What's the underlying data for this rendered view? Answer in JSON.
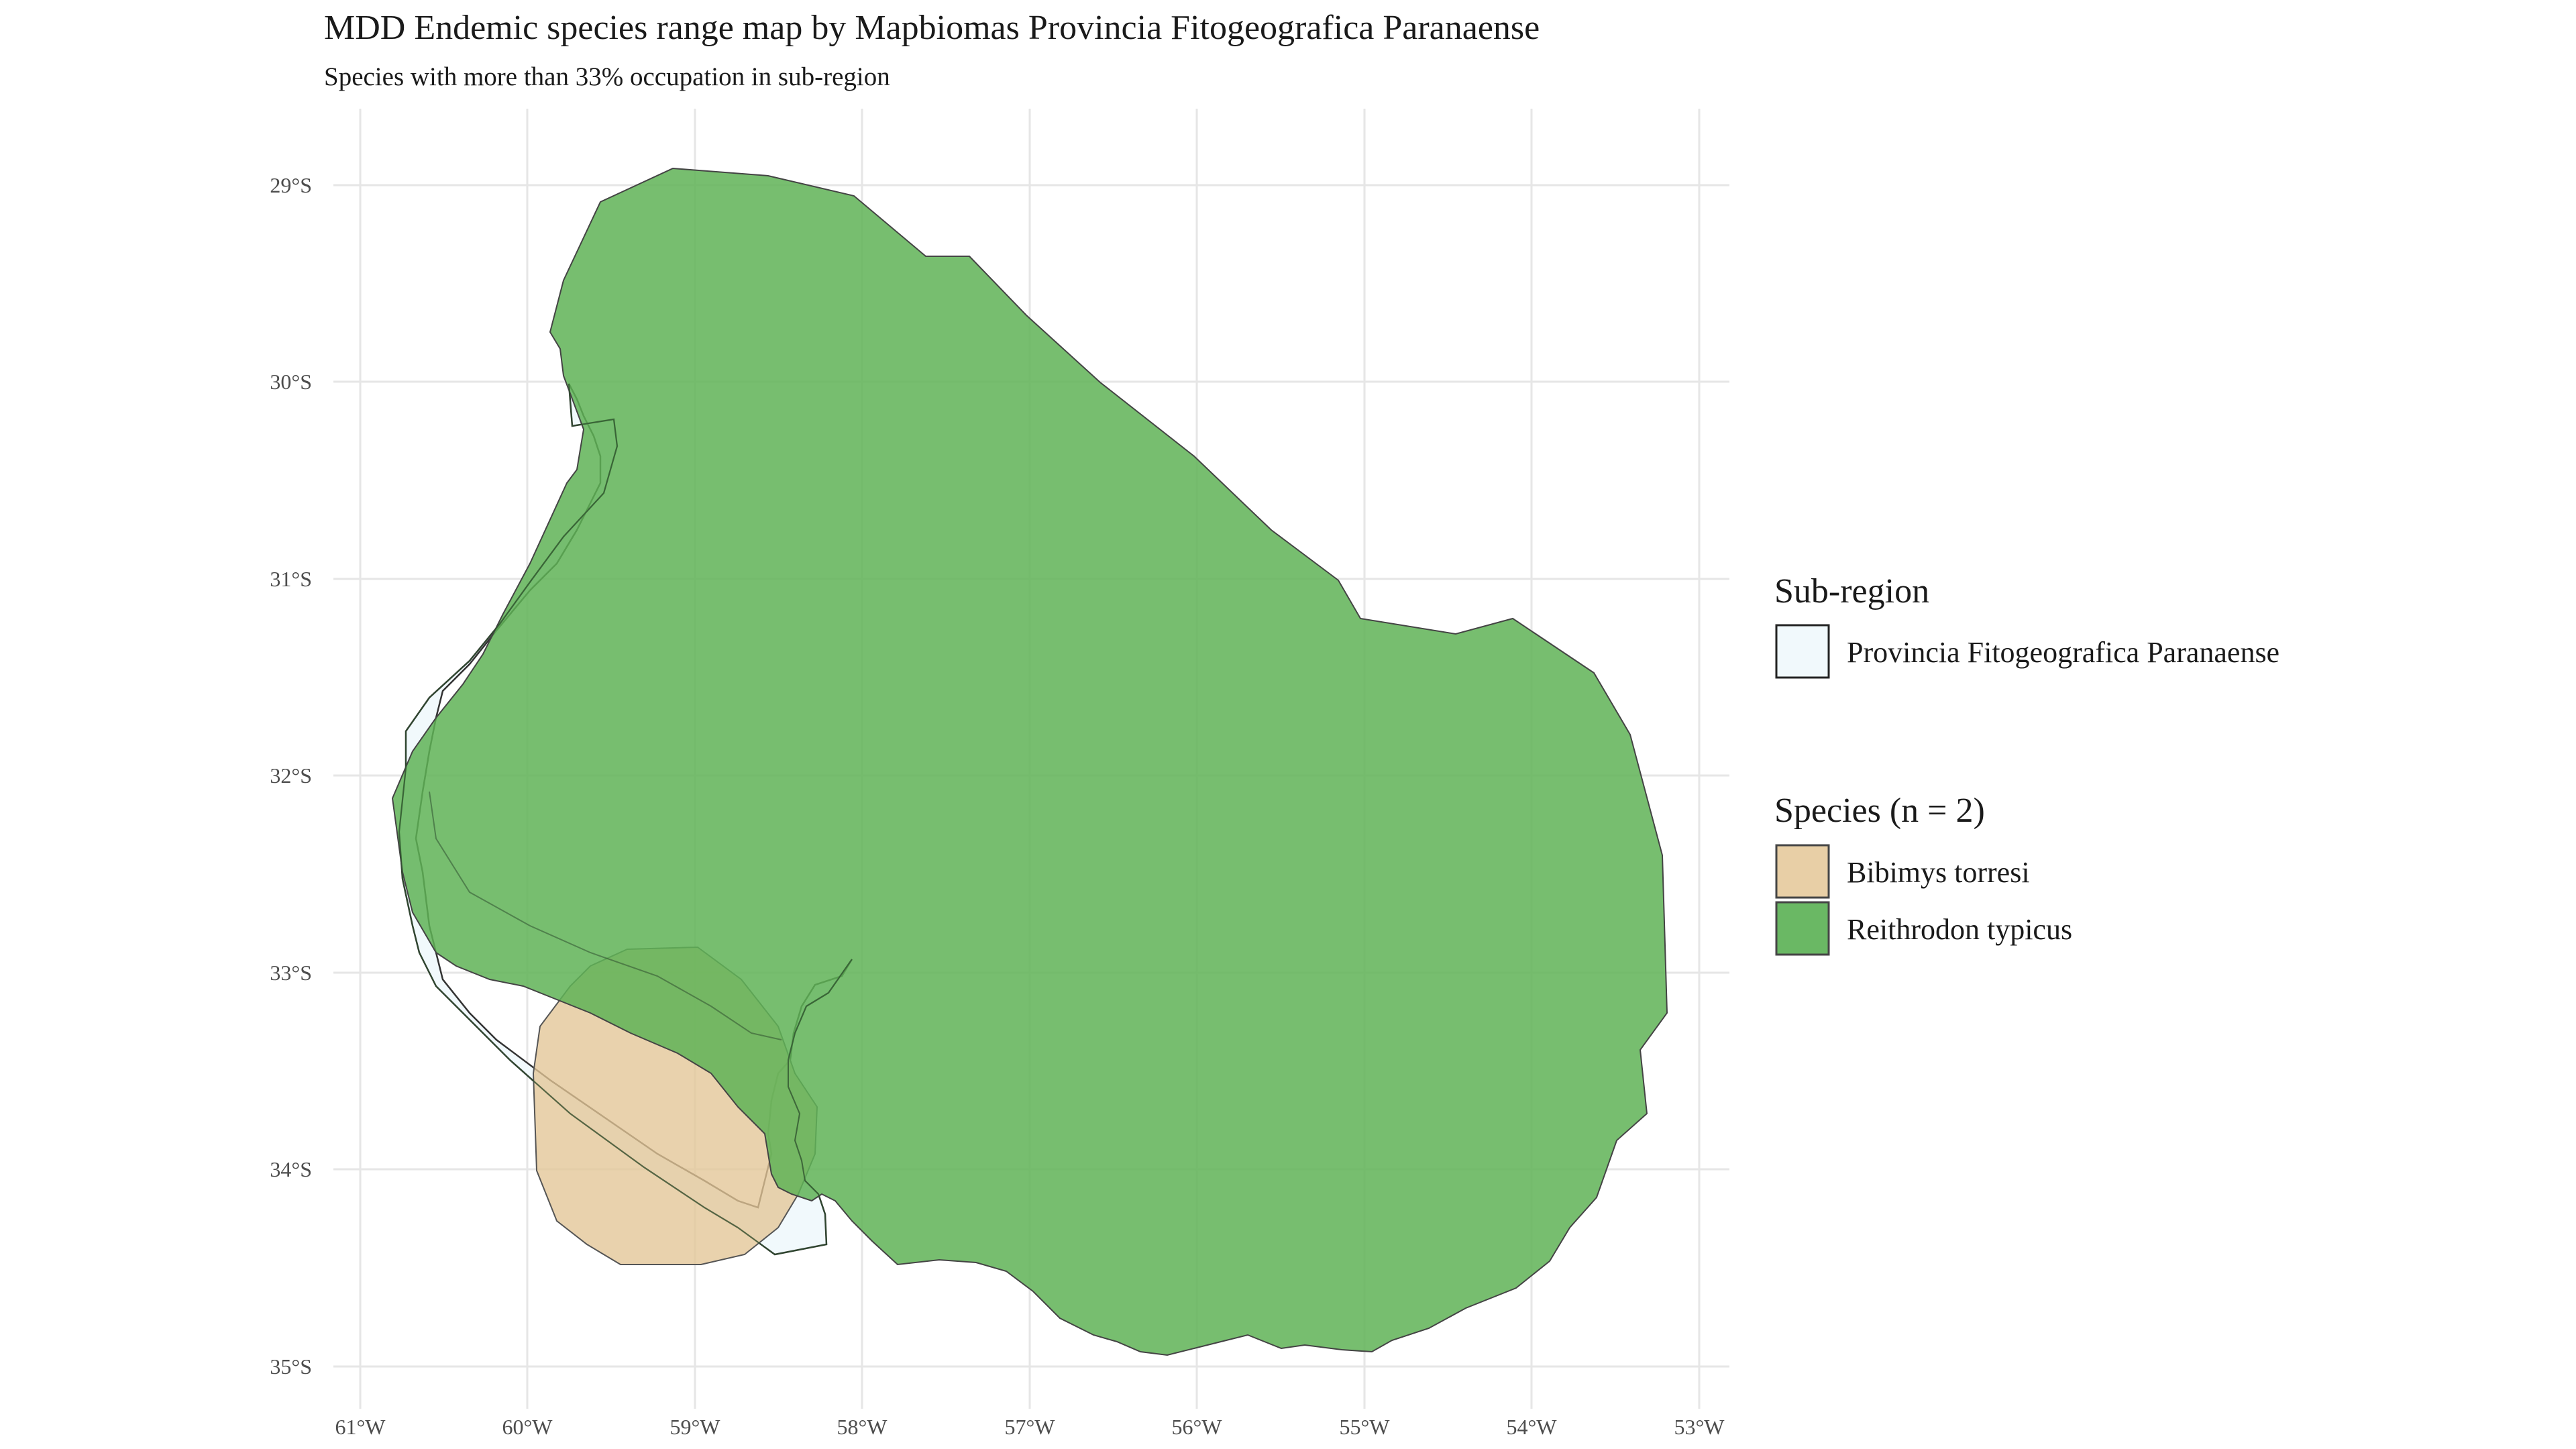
{
  "title": "MDD Endemic species range map by Mapbiomas Provincia Fitogeografica Paranaense",
  "subtitle": "Species with more than 33% occupation in sub-region",
  "axes": {
    "x_ticks": [
      "61°W",
      "60°W",
      "59°W",
      "58°W",
      "57°W",
      "56°W",
      "55°W",
      "54°W",
      "53°W"
    ],
    "y_ticks": [
      "29°S",
      "30°S",
      "31°S",
      "32°S",
      "33°S",
      "34°S",
      "35°S"
    ],
    "x_range_lon": [
      -61,
      -53
    ],
    "y_range_lat": [
      -35,
      -29
    ]
  },
  "legend": {
    "subregion": {
      "title": "Sub-region",
      "items": [
        {
          "label": "Provincia Fitogeografica Paranaense",
          "fill": "#f1f9fc",
          "stroke": "#222222"
        }
      ]
    },
    "species": {
      "title": "Species (n = 2)",
      "items": [
        {
          "label": "Bibimys torresi",
          "fill": "#e8cfa6",
          "stroke": "#444444"
        },
        {
          "label": "Reithrodon typicus",
          "fill": "#6ab864",
          "stroke": "#444444"
        }
      ]
    }
  },
  "colors": {
    "subregion_fill": "#f1f9fc",
    "bibimys_fill": "#e3c596",
    "reithrodon_fill": "#5fb356",
    "grid": "#e6e6e6",
    "outline": "#333333"
  }
}
